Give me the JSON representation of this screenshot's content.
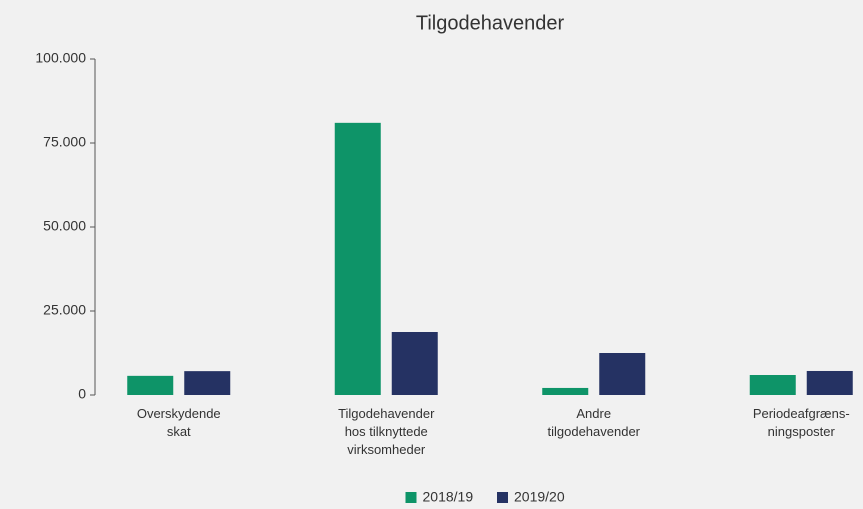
{
  "chart_data": {
    "type": "bar",
    "title": "Tilgodehavender",
    "categories": [
      "Overskydende\nskat",
      "Tilgodehavender\nhos tilknyttede\nvirksomheder",
      "Andre\ntilgodehavender",
      "Periodeafgræns-\nningsposter"
    ],
    "series": [
      {
        "name": "2018/19",
        "color": "#0e9468",
        "values": [
          5700,
          81000,
          2100,
          5950
        ]
      },
      {
        "name": "2019/20",
        "color": "#253263",
        "values": [
          7100,
          18750,
          12500,
          7150
        ]
      }
    ],
    "ylim": [
      0,
      100000
    ],
    "yticks": [
      0,
      {
        "value": 25000,
        "label": "25.000"
      },
      {
        "value": 50000,
        "label": "50.000"
      },
      {
        "value": 75000,
        "label": "75.000"
      },
      {
        "value": 100000,
        "label": "100.000"
      }
    ],
    "grid": false,
    "legend": "bottom"
  }
}
